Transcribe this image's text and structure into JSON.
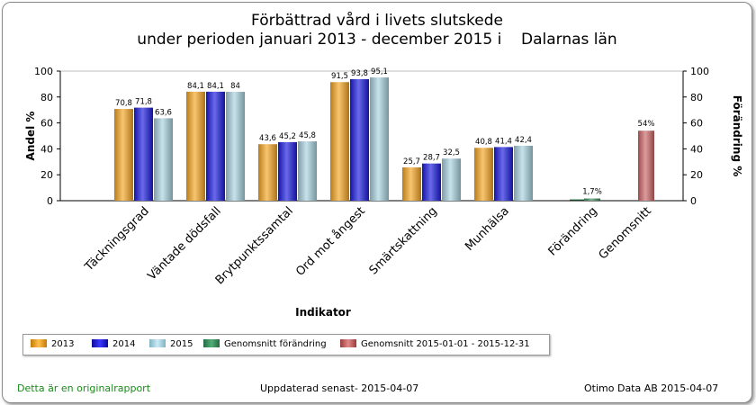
{
  "chart_data": {
    "type": "bar",
    "title_line1": "Förbättrad vård i livets slutskede",
    "title_line2": "under perioden januari 2013 - december 2015 i    Dalarnas län",
    "xlabel": "Indikator",
    "ylabel": "Andel %",
    "y2label": "Förändring %",
    "ylim": [
      0,
      100
    ],
    "y2lim": [
      0,
      100
    ],
    "yticks": [
      "0",
      "20",
      "40",
      "60",
      "80",
      "100"
    ],
    "grid": false,
    "categories": [
      "Täckningsgrad",
      "Väntade dödsfall",
      "Brytpunktssamtal",
      "Ord mot ångest",
      "Smärtskattning",
      "Munhälsa"
    ],
    "series": [
      {
        "name": "2013",
        "color": "#f5a623",
        "values": [
          70.8,
          84.1,
          43.6,
          91.5,
          25.7,
          40.8
        ],
        "labels": [
          "70,8",
          "84,1",
          "43,6",
          "91,5",
          "25,7",
          "40,8"
        ]
      },
      {
        "name": "2014",
        "color": "#1a1adf",
        "values": [
          71.8,
          84.1,
          45.2,
          93.8,
          28.7,
          41.4
        ],
        "labels": [
          "71,8",
          "84,1",
          "45,2",
          "93,8",
          "28,7",
          "41,4"
        ]
      },
      {
        "name": "2015",
        "color": "#a9d3e0",
        "values": [
          63.6,
          84,
          45.8,
          95.1,
          32.5,
          42.4
        ],
        "labels": [
          "63,6",
          "84",
          "45,8",
          "95,1",
          "32,5",
          "42,4"
        ]
      }
    ],
    "extra_bars": [
      {
        "category": "Förändring",
        "series": "Genomsnitt förändring",
        "color": "#3a8a5a",
        "value": 1.7,
        "label": "1,7%"
      },
      {
        "category": "Genomsnitt",
        "series": "Genomsnitt 2015-01-01 - 2015-12-31",
        "color": "#cc6666",
        "value": 54,
        "label": "54%"
      }
    ],
    "legend": [
      "2013",
      "2014",
      "2015",
      "Genomsnitt förändring",
      "Genomsnitt 2015-01-01 - 2015-12-31"
    ],
    "legend_placement": "bottom"
  },
  "footer": {
    "left": "Detta är en originalrapport",
    "center": "Uppdaterad senast- 2015-04-07",
    "right": "Otimo Data AB 2015-04-07",
    "left_color": "#1a8a1a"
  }
}
